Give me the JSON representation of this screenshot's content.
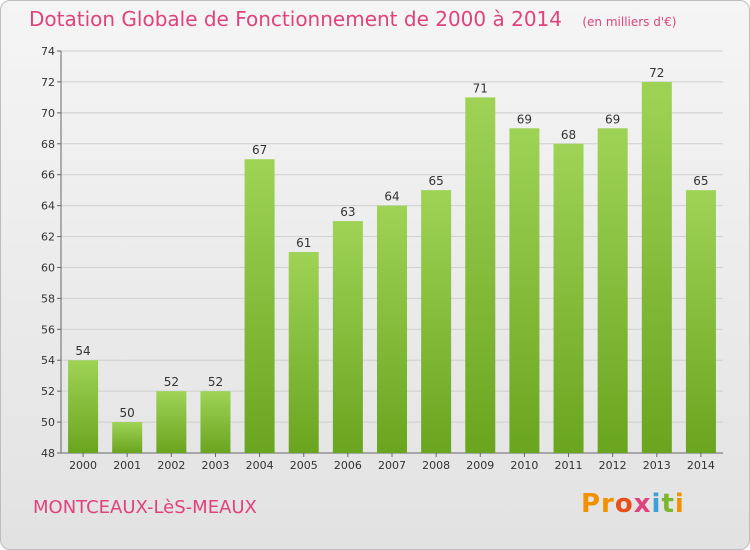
{
  "chart_data": {
    "type": "bar",
    "title": "Dotation Globale de Fonctionnement de 2000 à 2014",
    "unit_note": "(en milliers d'€)",
    "categories": [
      "2000",
      "2001",
      "2002",
      "2003",
      "2004",
      "2005",
      "2006",
      "2007",
      "2008",
      "2009",
      "2010",
      "2011",
      "2012",
      "2013",
      "2014"
    ],
    "values": [
      54,
      50,
      52,
      52,
      67,
      61,
      63,
      64,
      65,
      71,
      69,
      68,
      69,
      72,
      65
    ],
    "ylim": [
      48,
      74
    ],
    "yticks": [
      48,
      50,
      52,
      54,
      56,
      58,
      60,
      62,
      64,
      66,
      68,
      70,
      72,
      74
    ],
    "xlabel": "",
    "ylabel": "",
    "grid": true,
    "bar_color": "#8cc63f",
    "title_color": "#e0427e"
  },
  "footer": {
    "place": "MONTCEAUX-LèS-MEAUX",
    "brand": [
      "Pr",
      "o",
      "x",
      "i",
      "t",
      "i"
    ]
  }
}
